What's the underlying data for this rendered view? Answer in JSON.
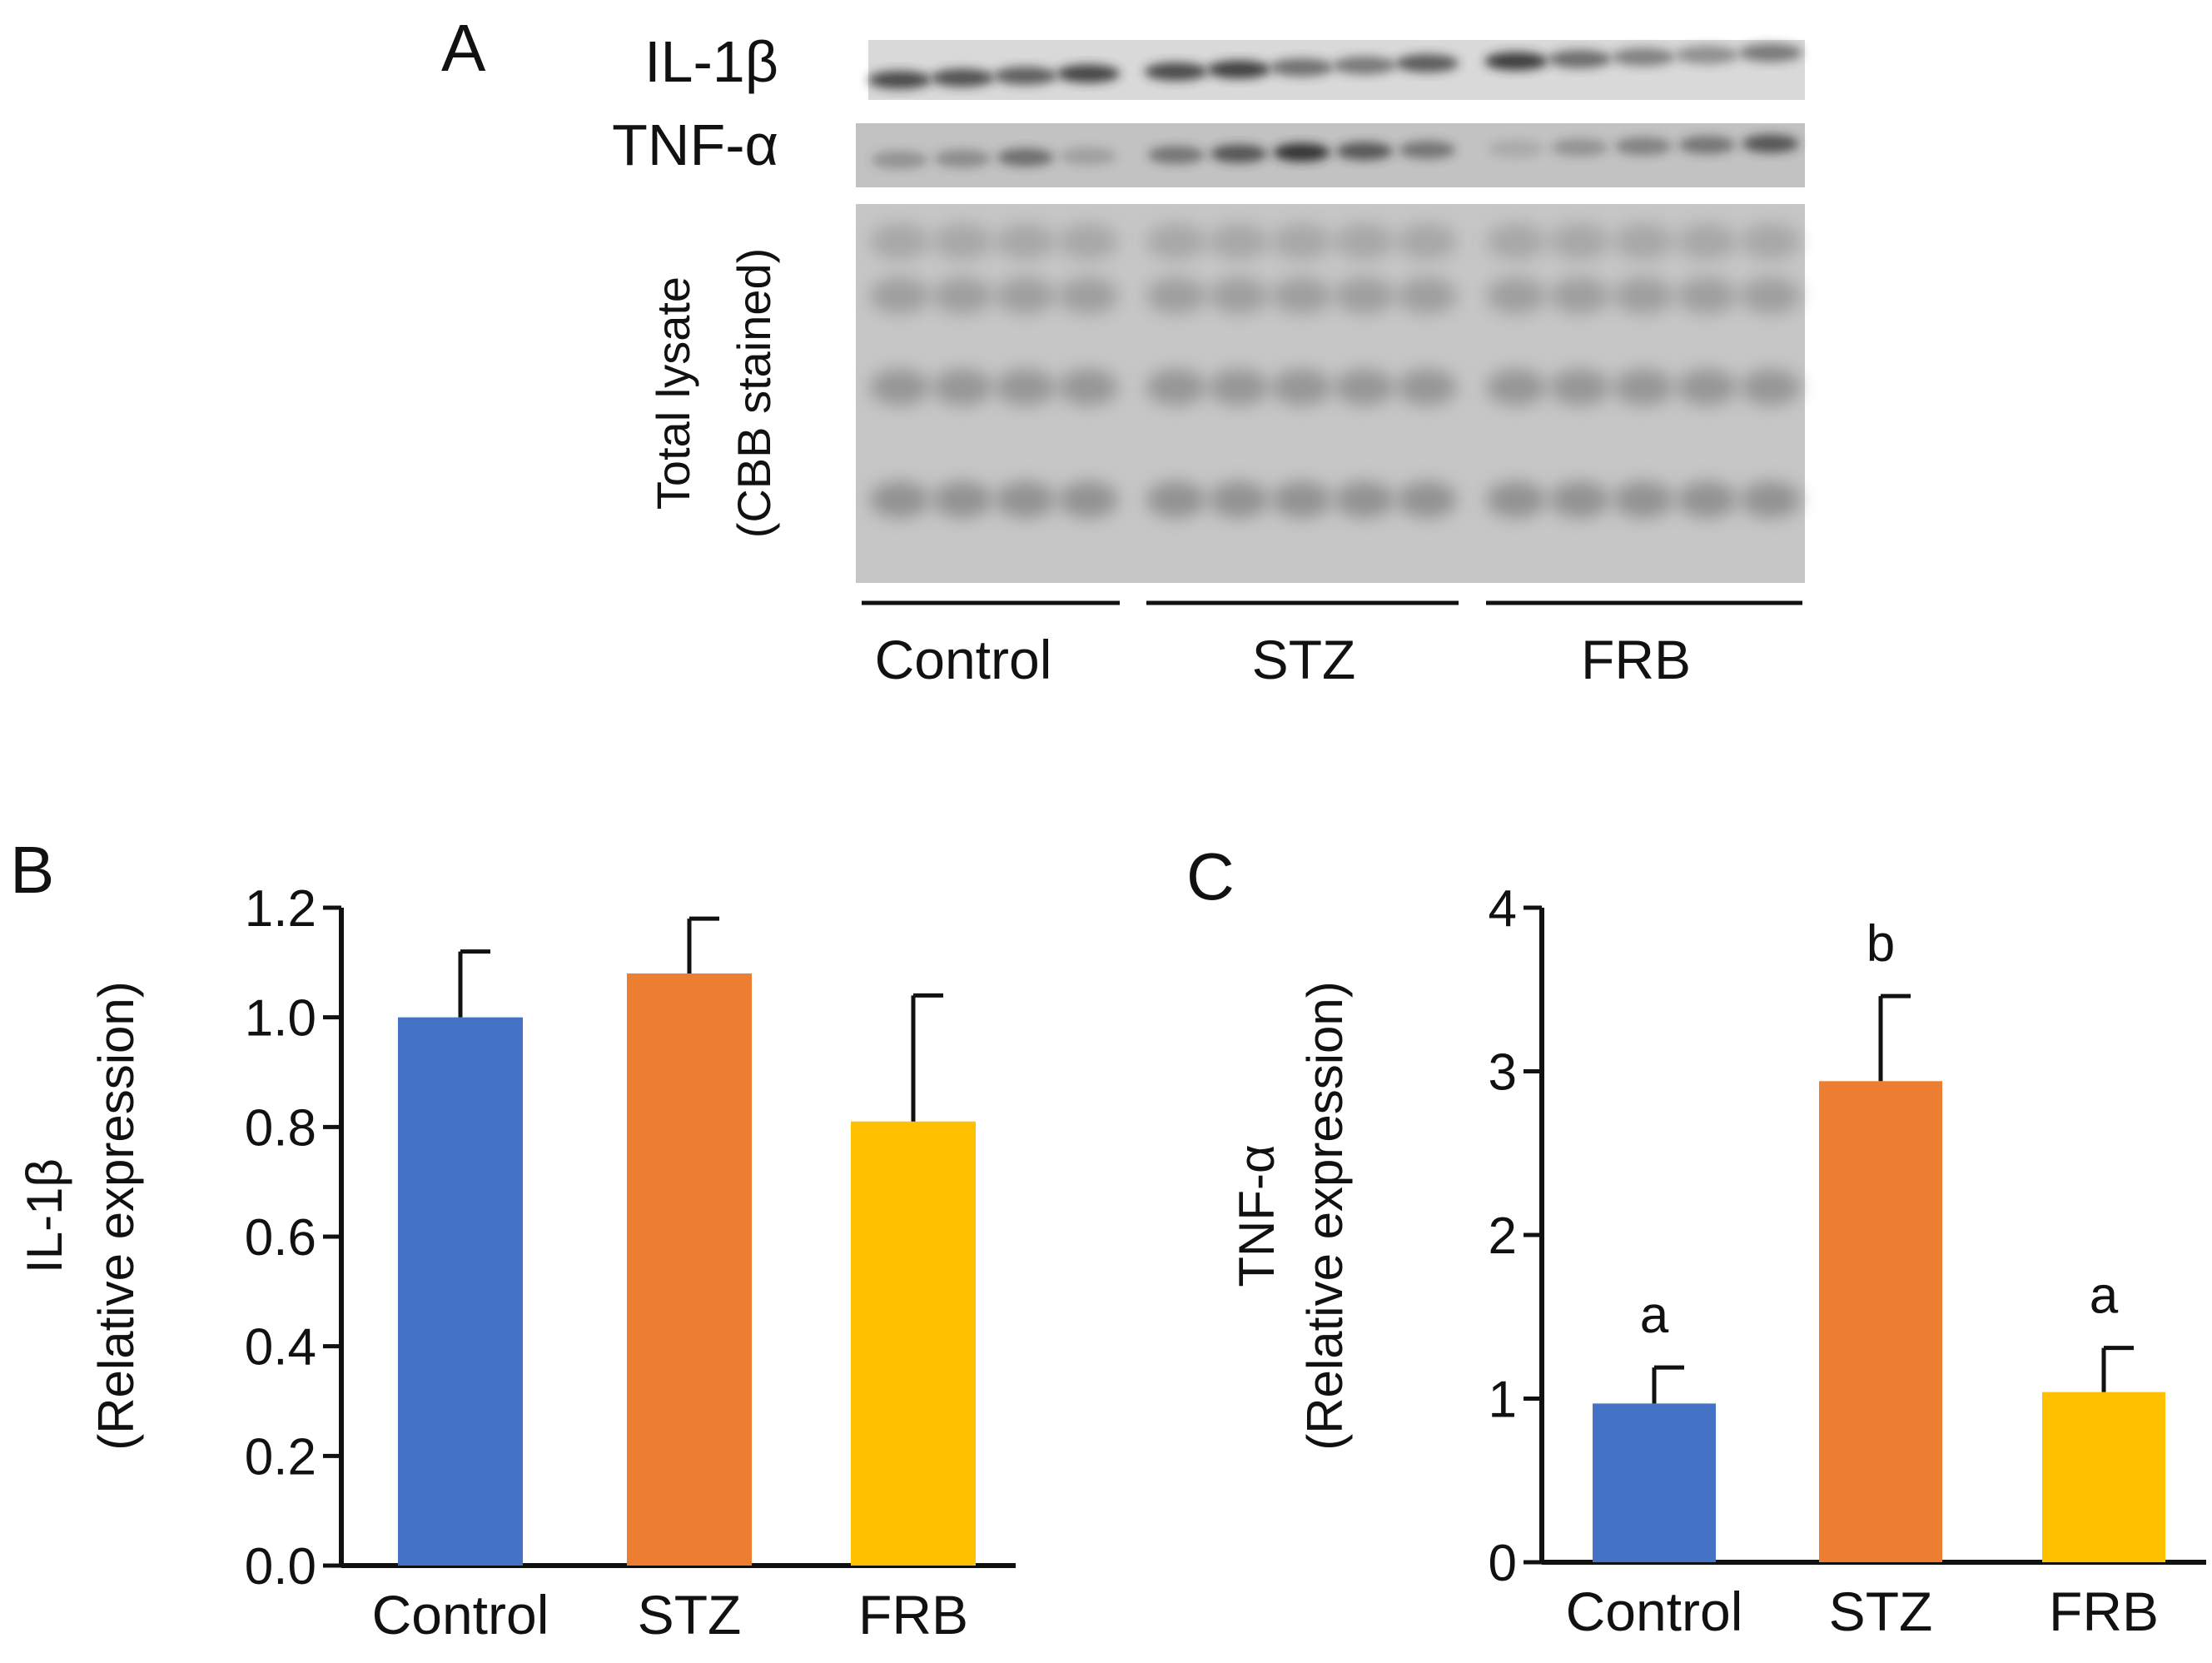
{
  "panel_a": {
    "panel_label": "A",
    "band_labels": [
      "IL-1β",
      "TNF-α"
    ],
    "lysate_label_line1": "Total lysate",
    "lysate_label_line2": "(CBB stained)",
    "groups": [
      {
        "name": "Control",
        "lanes": 4
      },
      {
        "name": "STZ",
        "lanes": 5
      },
      {
        "name": "FRB",
        "lanes": 5
      }
    ],
    "il1b_band_intensity": [
      0.82,
      0.78,
      0.7,
      0.85,
      0.82,
      0.88,
      0.6,
      0.55,
      0.72,
      0.9,
      0.62,
      0.5,
      0.42,
      0.55
    ],
    "tnfa_band_intensity": [
      0.3,
      0.35,
      0.55,
      0.22,
      0.5,
      0.72,
      0.95,
      0.7,
      0.5,
      0.15,
      0.3,
      0.42,
      0.5,
      0.72
    ],
    "colors": {
      "blot_bg": "#c8c8c8",
      "band": "#2a2a2a"
    }
  },
  "chart_data": [
    {
      "panel_label": "B",
      "type": "bar",
      "categories": [
        "Control",
        "STZ",
        "FRB"
      ],
      "values": [
        1.0,
        1.08,
        0.81
      ],
      "errors": [
        0.12,
        0.1,
        0.23
      ],
      "colors": [
        "#4472c4",
        "#ed7d31",
        "#ffc000"
      ],
      "ylabel_line1": "IL-1β",
      "ylabel_line2": "(Relative expression)",
      "ylim": [
        0,
        1.2
      ],
      "yticks": [
        "0.0",
        "0.2",
        "0.4",
        "0.6",
        "0.8",
        "1.0",
        "1.2"
      ],
      "annotations": []
    },
    {
      "panel_label": "C",
      "type": "bar",
      "categories": [
        "Control",
        "STZ",
        "FRB"
      ],
      "values": [
        0.97,
        2.94,
        1.04
      ],
      "errors": [
        0.22,
        0.52,
        0.27
      ],
      "colors": [
        "#4472c4",
        "#ed7d31",
        "#ffc000"
      ],
      "ylabel_line1": "TNF-α",
      "ylabel_line2": "(Relative expression)",
      "ylim": [
        0,
        4
      ],
      "yticks": [
        "0",
        "1",
        "2",
        "3",
        "4"
      ],
      "annotations": [
        "a",
        "b",
        "a"
      ]
    }
  ]
}
